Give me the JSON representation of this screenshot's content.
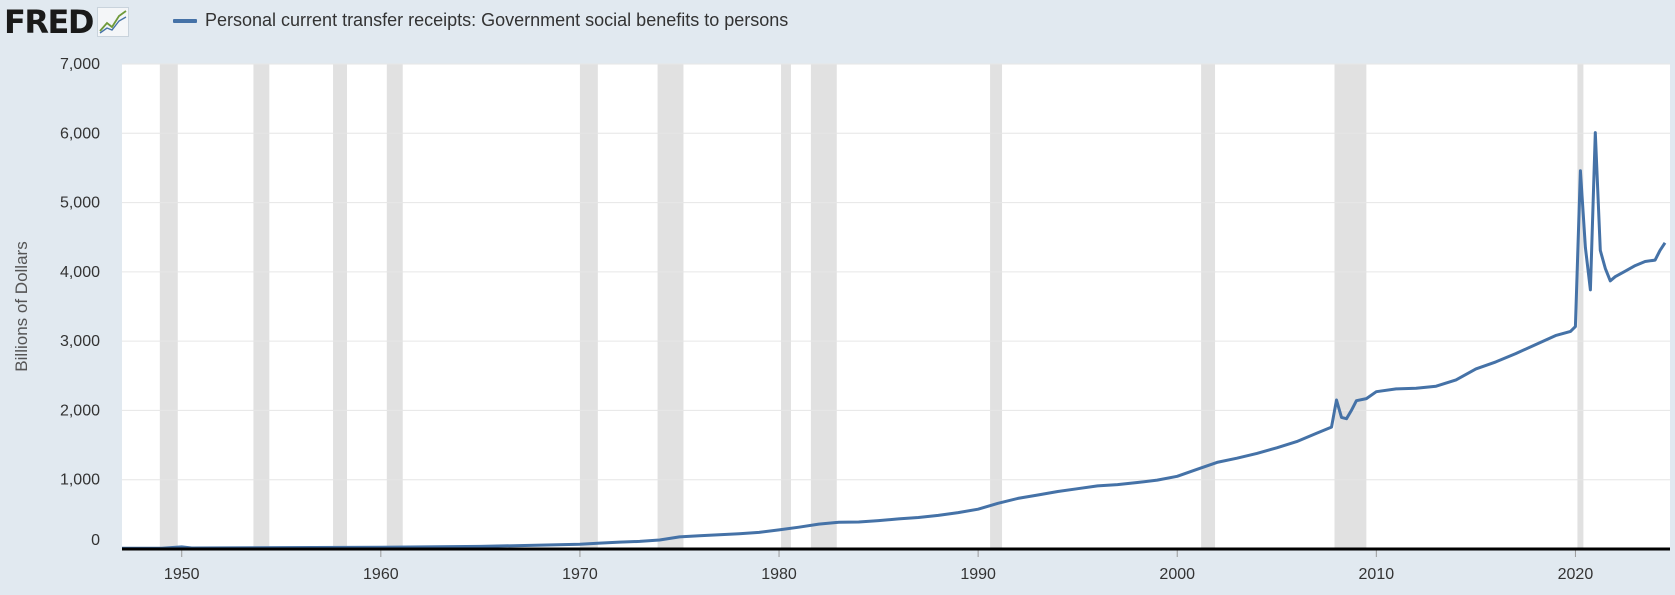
{
  "header": {
    "logo_text": "FRED",
    "logo_icon": "fred-line-chart-icon",
    "legend_label": "Personal current transfer receipts: Government social benefits to persons"
  },
  "colors": {
    "series": "#4572a7",
    "recession": "#e1e1e1",
    "background": "#e1e9f0",
    "plot": "#ffffff",
    "grid": "#e6e6e6"
  },
  "chart_data": {
    "type": "line",
    "title": "",
    "ylabel": "Billions of Dollars",
    "xlabel": "",
    "xlim": [
      1947.0,
      2024.75
    ],
    "ylim": [
      0,
      7000
    ],
    "y_ticks": [
      0,
      1000,
      2000,
      3000,
      4000,
      5000,
      6000,
      7000
    ],
    "y_tick_labels": [
      "0",
      "1,000",
      "2,000",
      "3,000",
      "4,000",
      "5,000",
      "6,000",
      "7,000"
    ],
    "x_ticks": [
      1950,
      1960,
      1970,
      1980,
      1990,
      2000,
      2010,
      2020
    ],
    "x_tick_labels": [
      "1950",
      "1960",
      "1970",
      "1980",
      "1990",
      "2000",
      "2010",
      "2020"
    ],
    "grid": true,
    "legend": "top-left",
    "recessions": [
      [
        1948.9,
        1949.8
      ],
      [
        1953.6,
        1954.4
      ],
      [
        1957.6,
        1958.3
      ],
      [
        1960.3,
        1961.1
      ],
      [
        1970.0,
        1970.9
      ],
      [
        1973.9,
        1975.2
      ],
      [
        1980.1,
        1980.6
      ],
      [
        1981.6,
        1982.9
      ],
      [
        1990.6,
        1991.2
      ],
      [
        2001.2,
        2001.9
      ],
      [
        2007.9,
        2009.5
      ],
      [
        2020.1,
        2020.4
      ]
    ],
    "series": [
      {
        "name": "Personal current transfer receipts: Government social benefits to persons",
        "x": [
          1947.0,
          1949.0,
          1950.0,
          1950.5,
          1955.0,
          1960.0,
          1965.0,
          1970.0,
          1971.0,
          1972.0,
          1973.0,
          1974.0,
          1975.0,
          1976.0,
          1977.0,
          1978.0,
          1979.0,
          1980.0,
          1981.0,
          1982.0,
          1983.0,
          1984.0,
          1985.0,
          1986.0,
          1987.0,
          1988.0,
          1989.0,
          1990.0,
          1991.0,
          1992.0,
          1993.0,
          1994.0,
          1995.0,
          1996.0,
          1997.0,
          1998.0,
          1999.0,
          2000.0,
          2001.0,
          2002.0,
          2003.0,
          2004.0,
          2005.0,
          2006.0,
          2007.0,
          2007.75,
          2008.0,
          2008.25,
          2008.5,
          2008.75,
          2009.0,
          2009.5,
          2010.0,
          2011.0,
          2012.0,
          2013.0,
          2014.0,
          2015.0,
          2016.0,
          2017.0,
          2018.0,
          2019.0,
          2019.75,
          2020.0,
          2020.25,
          2020.5,
          2020.75,
          2021.0,
          2021.25,
          2021.5,
          2021.75,
          2022.0,
          2022.5,
          2023.0,
          2023.5,
          2024.0,
          2024.25,
          2024.5
        ],
        "y": [
          10,
          12,
          30,
          15,
          20,
          26,
          38,
          68,
          85,
          100,
          110,
          130,
          175,
          190,
          205,
          220,
          240,
          275,
          315,
          360,
          385,
          390,
          410,
          435,
          455,
          485,
          525,
          575,
          660,
          730,
          780,
          830,
          870,
          910,
          930,
          960,
          995,
          1050,
          1150,
          1250,
          1310,
          1380,
          1460,
          1550,
          1670,
          1760,
          2150,
          1900,
          1880,
          2000,
          2140,
          2170,
          2270,
          2310,
          2320,
          2350,
          2440,
          2600,
          2700,
          2820,
          2950,
          3080,
          3140,
          3210,
          5460,
          4350,
          3740,
          6010,
          4310,
          4050,
          3870,
          3930,
          4010,
          4090,
          4150,
          4170,
          4310,
          4420
        ]
      }
    ]
  }
}
